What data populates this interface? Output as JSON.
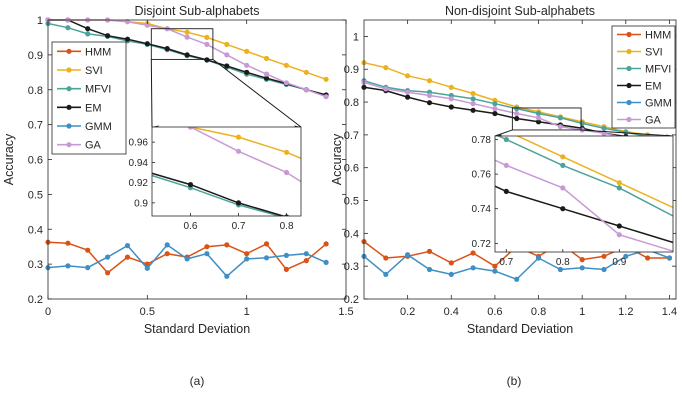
{
  "figure": {
    "caption_a": "(a)",
    "caption_b": "(b)"
  },
  "colors": {
    "HMM": "#d95319",
    "SVI": "#edb120",
    "MFVI": "#4ca39a",
    "EM": "#1a1a1a",
    "GMM": "#3f8fc4",
    "GA": "#c79ad6"
  },
  "chart_data": [
    {
      "type": "line",
      "title": "Disjoint Sub-alphabets",
      "xlabel": "Standard Deviation",
      "ylabel": "Accuracy",
      "xlim": [
        0,
        1.5
      ],
      "ylim": [
        0.2,
        1.0
      ],
      "xticks": [
        0,
        0.5,
        1,
        1.5
      ],
      "xtick_labels": [
        "0",
        "0.5",
        "1",
        "1.5"
      ],
      "yticks": [
        0.2,
        0.3,
        0.4,
        0.5,
        0.6,
        0.7,
        0.8,
        0.9,
        1.0
      ],
      "ytick_labels": [
        "0.2",
        "0.3",
        "0.4",
        "0.5",
        "0.6",
        "0.7",
        "0.8",
        "0.9",
        "1"
      ],
      "grid": false,
      "legend_position": "top-left",
      "x": [
        0,
        0.1,
        0.2,
        0.3,
        0.4,
        0.5,
        0.6,
        0.7,
        0.8,
        0.9,
        1.0,
        1.1,
        1.2,
        1.3,
        1.4
      ],
      "series": [
        {
          "name": "HMM",
          "values": [
            0.363,
            0.36,
            0.34,
            0.275,
            0.32,
            0.3,
            0.33,
            0.32,
            0.35,
            0.355,
            0.33,
            0.358,
            0.285,
            0.31,
            0.358
          ]
        },
        {
          "name": "SVI",
          "values": [
            1.0,
            1.0,
            1.0,
            1.0,
            0.995,
            0.99,
            0.975,
            0.965,
            0.95,
            0.93,
            0.91,
            0.89,
            0.87,
            0.85,
            0.83
          ]
        },
        {
          "name": "MFVI",
          "values": [
            0.99,
            0.978,
            0.96,
            0.953,
            0.94,
            0.93,
            0.915,
            0.898,
            0.885,
            0.865,
            0.845,
            0.83,
            0.815,
            0.8,
            0.785
          ]
        },
        {
          "name": "EM",
          "values": [
            1.0,
            1.0,
            0.975,
            0.955,
            0.945,
            0.932,
            0.918,
            0.9,
            0.886,
            0.868,
            0.85,
            0.833,
            0.818,
            0.8,
            0.785
          ]
        },
        {
          "name": "GMM",
          "values": [
            0.29,
            0.295,
            0.29,
            0.32,
            0.353,
            0.288,
            0.355,
            0.315,
            0.33,
            0.265,
            0.315,
            0.318,
            0.325,
            0.33,
            0.305
          ]
        },
        {
          "name": "GA",
          "values": [
            1.0,
            1.0,
            1.0,
            1.0,
            0.995,
            0.985,
            0.975,
            0.951,
            0.93,
            0.9,
            0.87,
            0.845,
            0.82,
            0.8,
            0.78
          ]
        }
      ],
      "inset": {
        "xlim": [
          0.52,
          0.83
        ],
        "ylim": [
          0.887,
          0.975
        ],
        "xticks": [
          0.6,
          0.7,
          0.8
        ],
        "xtick_labels": [
          "0.6",
          "0.7",
          "0.8"
        ],
        "yticks": [
          0.9,
          0.92,
          0.94,
          0.96
        ],
        "ytick_labels": [
          "0.9",
          "0.92",
          "0.94",
          "0.96"
        ]
      }
    },
    {
      "type": "line",
      "title": "Non-disjoint Sub-alphabets",
      "xlabel": "Standard Deviation",
      "ylabel": "Accuracy",
      "xlim": [
        0,
        1.43
      ],
      "ylim": [
        0.2,
        1.05
      ],
      "xticks": [
        0.2,
        0.4,
        0.6,
        0.8,
        1.0,
        1.2,
        1.4
      ],
      "xtick_labels": [
        "0.2",
        "0.4",
        "0.6",
        "0.8",
        "1",
        "1.2",
        "1.4"
      ],
      "yticks": [
        0.2,
        0.3,
        0.4,
        0.5,
        0.6,
        0.7,
        0.8,
        0.9,
        1.0
      ],
      "ytick_labels": [
        "0.2",
        "0.3",
        "0.4",
        "0.5",
        "0.6",
        "0.7",
        "0.8",
        "0.9",
        "1"
      ],
      "grid": false,
      "legend_position": "top-right",
      "x": [
        0,
        0.1,
        0.2,
        0.3,
        0.4,
        0.5,
        0.6,
        0.7,
        0.8,
        0.9,
        1.0,
        1.1,
        1.2,
        1.3,
        1.4
      ],
      "series": [
        {
          "name": "HMM",
          "values": [
            0.375,
            0.325,
            0.33,
            0.345,
            0.31,
            0.34,
            0.3,
            0.36,
            0.33,
            0.37,
            0.32,
            0.33,
            0.36,
            0.325,
            0.325
          ]
        },
        {
          "name": "SVI",
          "values": [
            0.92,
            0.905,
            0.88,
            0.865,
            0.845,
            0.826,
            0.805,
            0.785,
            0.77,
            0.755,
            0.74,
            0.725,
            0.71,
            0.7,
            0.69
          ]
        },
        {
          "name": "MFVI",
          "values": [
            0.865,
            0.845,
            0.835,
            0.83,
            0.82,
            0.81,
            0.795,
            0.78,
            0.765,
            0.752,
            0.735,
            0.72,
            0.708,
            0.695,
            0.685
          ]
        },
        {
          "name": "EM",
          "values": [
            0.845,
            0.835,
            0.815,
            0.798,
            0.785,
            0.775,
            0.765,
            0.75,
            0.74,
            0.73,
            0.72,
            0.705,
            0.695,
            0.685,
            0.67
          ]
        },
        {
          "name": "GMM",
          "values": [
            0.33,
            0.275,
            0.335,
            0.29,
            0.275,
            0.295,
            0.285,
            0.26,
            0.325,
            0.29,
            0.295,
            0.29,
            0.33,
            0.35,
            0.325
          ]
        },
        {
          "name": "GA",
          "values": [
            0.86,
            0.84,
            0.83,
            0.82,
            0.81,
            0.795,
            0.78,
            0.765,
            0.752,
            0.725,
            0.715,
            0.705,
            0.69,
            0.675,
            0.665
          ]
        }
      ],
      "inset": {
        "xlim": [
          0.68,
          0.995
        ],
        "ylim": [
          0.715,
          0.782
        ],
        "xticks": [
          0.7,
          0.8,
          0.9
        ],
        "xtick_labels": [
          "0.7",
          "0.8",
          "0.9"
        ],
        "yticks": [
          0.72,
          0.74,
          0.76,
          0.78
        ],
        "ytick_labels": [
          "0.72",
          "0.74",
          "0.76",
          "0.78"
        ]
      }
    }
  ]
}
